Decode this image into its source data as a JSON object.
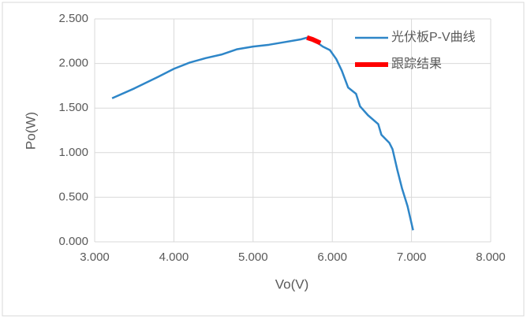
{
  "chart_data": {
    "type": "line",
    "x_label": "Vo(V)",
    "y_label": "Po(W)",
    "xlim": [
      3,
      8
    ],
    "xticks": [
      {
        "value": 3,
        "label": "3.000"
      },
      {
        "value": 4,
        "label": "4.000"
      },
      {
        "value": 5,
        "label": "5.000"
      },
      {
        "value": 6,
        "label": "6.000"
      },
      {
        "value": 7,
        "label": "7.000"
      },
      {
        "value": 8,
        "label": "8.000"
      }
    ],
    "ylim": [
      0,
      2.5
    ],
    "yticks": [
      {
        "value": 0,
        "label": "0.000"
      },
      {
        "value": 0.5,
        "label": "0.500"
      },
      {
        "value": 1,
        "label": "1.000"
      },
      {
        "value": 1.5,
        "label": "1.500"
      },
      {
        "value": 2,
        "label": "2.000"
      },
      {
        "value": 2.5,
        "label": "2.500"
      }
    ],
    "grid": true,
    "legend": "upper right",
    "series": [
      {
        "name": "光伏板P-V曲线",
        "color": "#2e86c8",
        "width": 2.5,
        "x": [
          3.22,
          3.5,
          3.8,
          4.0,
          4.2,
          4.4,
          4.6,
          4.8,
          5.0,
          5.2,
          5.4,
          5.6,
          5.68,
          5.8,
          5.88,
          5.97,
          6.05,
          6.12,
          6.2,
          6.3,
          6.35,
          6.45,
          6.58,
          6.62,
          6.72,
          6.76,
          6.82,
          6.88,
          6.95,
          7.02
        ],
        "values": [
          1.61,
          1.72,
          1.85,
          1.94,
          2.01,
          2.06,
          2.1,
          2.16,
          2.19,
          2.21,
          2.24,
          2.27,
          2.29,
          2.24,
          2.19,
          2.15,
          2.05,
          1.92,
          1.73,
          1.66,
          1.52,
          1.42,
          1.32,
          1.2,
          1.11,
          1.04,
          0.81,
          0.6,
          0.4,
          0.13
        ]
      },
      {
        "name": "跟踪结果",
        "color": "#ff0000",
        "width": 6,
        "x": [
          5.68,
          5.75,
          5.85
        ],
        "values": [
          2.29,
          2.27,
          2.23
        ]
      }
    ]
  }
}
